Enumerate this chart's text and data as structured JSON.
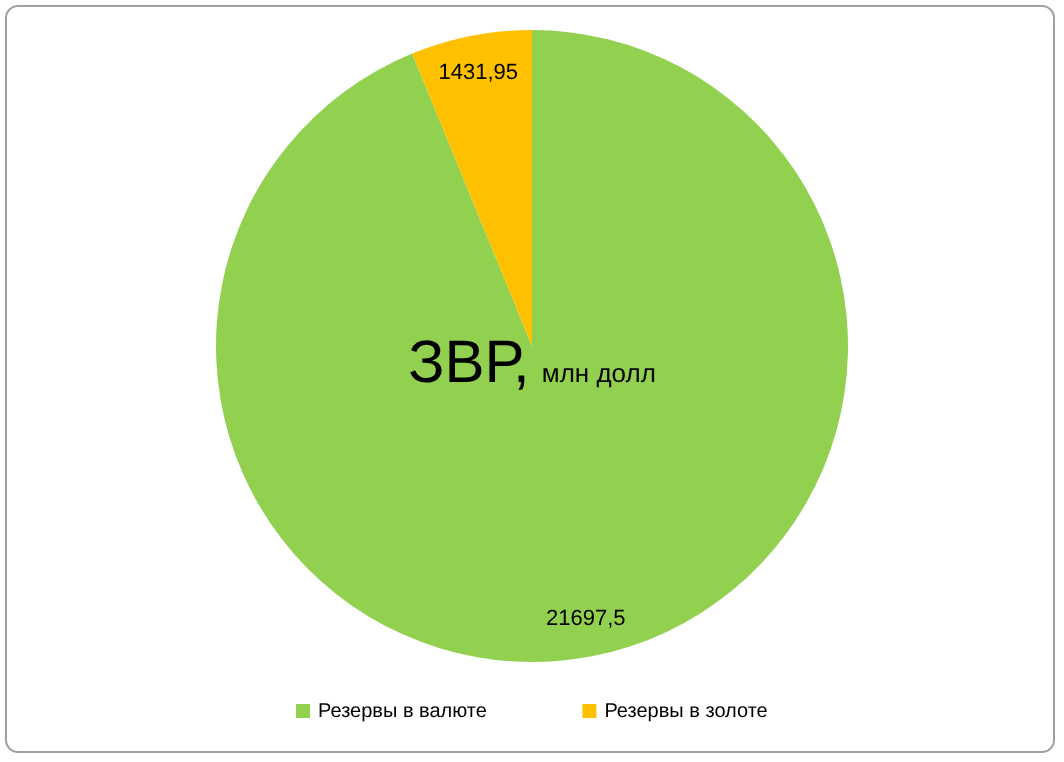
{
  "chart_data": {
    "type": "pie",
    "title": "ЗВР, млн долл",
    "categories": [
      "Резервы в валюте",
      "Резервы в золоте"
    ],
    "values": [
      21697.5,
      1431.95
    ],
    "colors": [
      "#92d050",
      "#ffc000"
    ],
    "value_labels": [
      "21697,5",
      "1431,95"
    ],
    "legend": "bottom"
  }
}
